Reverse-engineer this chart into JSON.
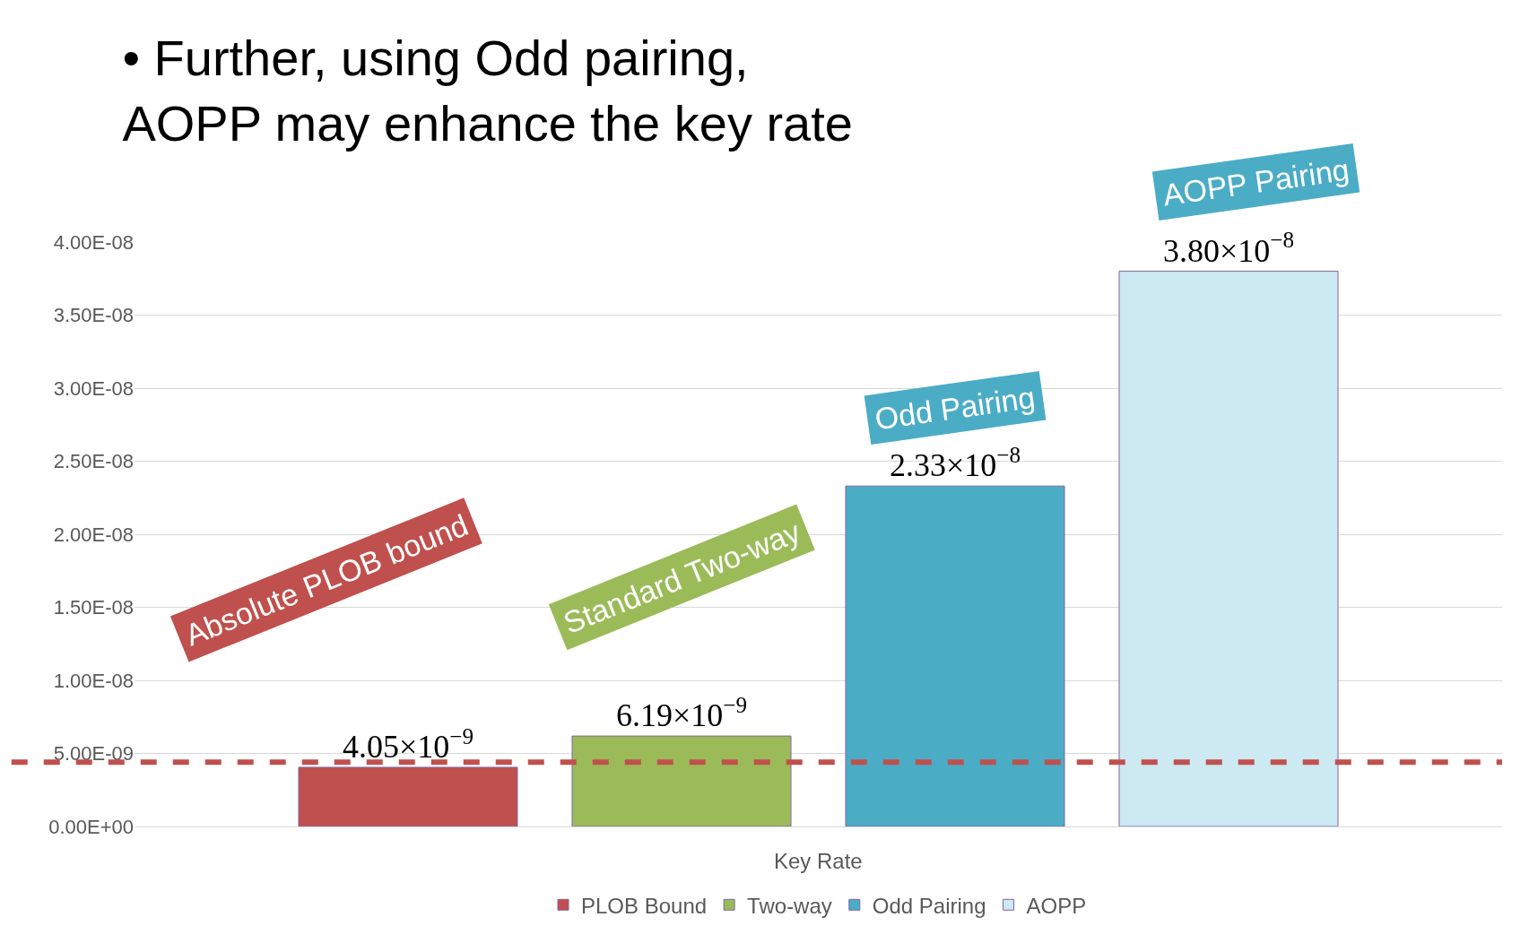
{
  "chart_data": {
    "type": "bar",
    "title": "• Further, using Odd pairing,\nAOPP may enhance the key rate",
    "categories": [
      "Key Rate"
    ],
    "series": [
      {
        "name": "PLOB Bound",
        "color": "#c0504d",
        "values": [
          4.05e-09
        ],
        "value_labels": [
          "4.05×10$^{−9}$"
        ]
      },
      {
        "name": "Two-way",
        "color": "#9bbb59",
        "values": [
          6.19e-09
        ],
        "value_labels": [
          "6.19×10$^{−9}$"
        ]
      },
      {
        "name": "Odd Pairing",
        "color": "#4bacc6",
        "values": [
          2.33e-08
        ],
        "value_labels": [
          "2.33×10$^{−8}$"
        ]
      },
      {
        "name": "AOPP",
        "color": "#cde9f2",
        "values": [
          3.8e-08
        ],
        "value_labels": [
          "3.80×10$^{−8}$"
        ]
      }
    ],
    "annotations": [
      "Absolute PLOB bound",
      "Standard Two-way",
      "Odd Pairing",
      "AOPP Pairing"
    ],
    "ylim": [
      0,
      4e-08
    ],
    "yticks": [
      {
        "value": 0,
        "label": "0.00E+00"
      },
      {
        "value": 5e-09,
        "label": "5.00E-09"
      },
      {
        "value": 1e-08,
        "label": "1.00E-08"
      },
      {
        "value": 1.5e-08,
        "label": "1.50E-08"
      },
      {
        "value": 2e-08,
        "label": "2.00E-08"
      },
      {
        "value": 2.5e-08,
        "label": "2.50E-08"
      },
      {
        "value": 3e-08,
        "label": "3.00E-08"
      },
      {
        "value": 3.5e-08,
        "label": "3.50E-08"
      },
      {
        "value": 4e-08,
        "label": "4.00E-08"
      }
    ],
    "ref_lines": [
      {
        "axis": "y",
        "value": 4.4e-09,
        "color": "#c0504d",
        "line_style": "dashed"
      }
    ],
    "grid": "y",
    "legend": "bottom"
  }
}
